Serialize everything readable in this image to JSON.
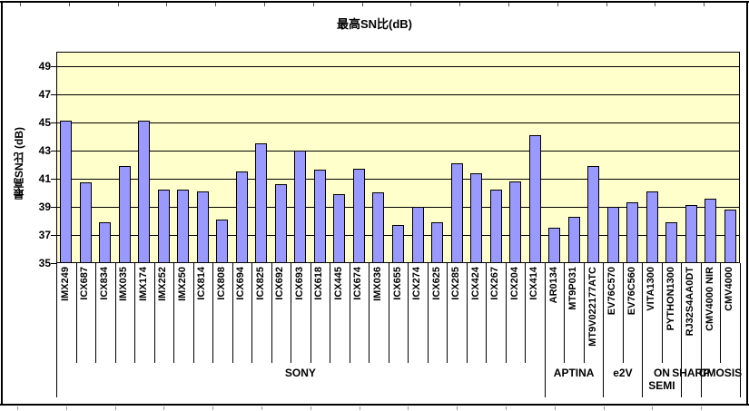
{
  "title": "最高SN比(dB)",
  "chart_data": {
    "type": "bar",
    "title": "最高SN比(dB)",
    "xlabel": "",
    "ylabel": "最高SN比 (dB)",
    "ylim": [
      35,
      50
    ],
    "yticks": [
      35,
      37,
      39,
      41,
      43,
      45,
      47,
      49
    ],
    "grid": true,
    "legend": "none",
    "plot_bg_color": "#FFFFCC",
    "bar_color": "#9999FF",
    "bar_border_color": "#000000",
    "categories": [
      "IMX249",
      "ICX687",
      "ICX834",
      "IMX035",
      "IMX174",
      "IMX252",
      "IMX250",
      "ICX814",
      "ICX808",
      "ICX694",
      "ICX825",
      "ICX692",
      "ICX693",
      "ICX618",
      "ICX445",
      "ICX674",
      "IMX036",
      "ICX655",
      "ICX274",
      "ICX625",
      "ICX285",
      "ICX424",
      "ICX267",
      "ICX204",
      "ICX414",
      "AR0134",
      "MT9P031",
      "MT9V022177ATC",
      "EV76C570",
      "EV76C560",
      "VITA1300",
      "PYTHON1300",
      "RJ32S4AA0DT",
      "CMV4000 NIR",
      "CMV4000"
    ],
    "values": [
      45.1,
      40.7,
      37.9,
      41.9,
      45.1,
      40.2,
      40.2,
      40.1,
      38.1,
      41.5,
      43.5,
      40.6,
      43.0,
      41.6,
      39.9,
      41.7,
      40.0,
      37.7,
      39.0,
      37.9,
      42.1,
      41.4,
      40.2,
      40.8,
      44.1,
      37.5,
      38.3,
      41.9,
      39.0,
      39.3,
      40.1,
      37.9,
      39.1,
      39.6,
      38.8
    ],
    "groups": [
      {
        "label": "SONY",
        "count": 25,
        "wrap": false
      },
      {
        "label": "APTINA",
        "count": 3,
        "wrap": false
      },
      {
        "label": "e2V",
        "count": 2,
        "wrap": false
      },
      {
        "label": "ON SEMI",
        "count": 2,
        "wrap": true
      },
      {
        "label": "SHARP",
        "count": 1,
        "wrap": false
      },
      {
        "label": "CMOSIS",
        "count": 2,
        "wrap": false
      }
    ]
  }
}
